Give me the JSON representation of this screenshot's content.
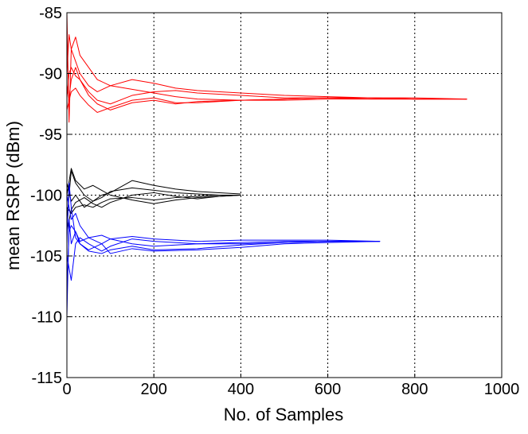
{
  "chart_data": {
    "type": "line",
    "title": "",
    "xlabel": "No. of Samples",
    "ylabel": "mean RSRP (dBm)",
    "xlim": [
      0,
      1000
    ],
    "ylim": [
      -115,
      -85
    ],
    "xticks": [
      0,
      200,
      400,
      600,
      800,
      1000
    ],
    "yticks": [
      -85,
      -90,
      -95,
      -100,
      -105,
      -110,
      -115
    ],
    "xtick_labels": [
      "0",
      "200",
      "400",
      "600",
      "800",
      "1000"
    ],
    "ytick_labels": [
      "-85",
      "-90",
      "-95",
      "-100",
      "-105",
      "-110",
      "-115"
    ],
    "grid": true,
    "grid_style": "dotted",
    "legend": null,
    "series": [
      {
        "color": "#ff0000",
        "x": [
          0,
          5,
          10,
          20,
          30,
          50,
          70,
          100,
          150,
          200,
          250,
          300,
          400,
          500,
          600,
          700,
          800,
          920
        ],
        "y": [
          -85,
          -94,
          -88,
          -87,
          -88.5,
          -89.5,
          -90.5,
          -91,
          -90.5,
          -90.8,
          -91.2,
          -91.4,
          -91.6,
          -91.8,
          -91.9,
          -92,
          -92,
          -92.1
        ]
      },
      {
        "color": "#ff0000",
        "x": [
          0,
          5,
          10,
          20,
          30,
          50,
          70,
          100,
          150,
          200,
          250,
          300,
          400,
          500,
          600,
          700,
          800,
          920
        ],
        "y": [
          -90,
          -86.8,
          -88,
          -89,
          -90,
          -91,
          -91.5,
          -91,
          -91.3,
          -91.6,
          -91.9,
          -92.1,
          -92.2,
          -92.1,
          -92,
          -92,
          -92.1,
          -92.1
        ]
      },
      {
        "color": "#ff0000",
        "x": [
          0,
          5,
          10,
          20,
          30,
          50,
          70,
          100,
          150,
          200,
          250,
          300,
          400,
          500,
          600,
          700,
          800,
          920
        ],
        "y": [
          -91,
          -92,
          -90.5,
          -89.5,
          -90.5,
          -91.8,
          -92.5,
          -93,
          -92.4,
          -92.2,
          -92.5,
          -92.3,
          -92.2,
          -92.2,
          -92.1,
          -92.1,
          -92.1,
          -92.1
        ]
      },
      {
        "color": "#ff0000",
        "x": [
          0,
          5,
          10,
          20,
          30,
          50,
          70,
          100,
          150,
          200,
          250,
          300,
          400,
          500,
          600,
          700,
          800,
          920
        ],
        "y": [
          -93,
          -92.2,
          -91.5,
          -91.2,
          -91.8,
          -92.6,
          -93.2,
          -92.8,
          -92.2,
          -92,
          -92.4,
          -92.4,
          -92.2,
          -92.1,
          -92,
          -92,
          -92.1,
          -92.1
        ]
      },
      {
        "color": "#ff0000",
        "x": [
          0,
          5,
          10,
          20,
          30,
          50,
          70,
          100,
          150,
          200,
          250,
          300,
          400,
          500,
          600,
          700,
          800,
          920
        ],
        "y": [
          -92,
          -90,
          -89.5,
          -90.2,
          -90.5,
          -91.5,
          -92.2,
          -92.5,
          -91.8,
          -91.5,
          -91.4,
          -91.6,
          -91.8,
          -92,
          -92,
          -92.1,
          -92.1,
          -92.1
        ]
      },
      {
        "color": "#000000",
        "x": [
          0,
          10,
          20,
          40,
          60,
          80,
          100,
          150,
          200,
          250,
          300,
          350,
          400
        ],
        "y": [
          -102,
          -98,
          -99,
          -100,
          -100.5,
          -100.2,
          -99.7,
          -99.4,
          -99.6,
          -99.8,
          -99.9,
          -100,
          -100
        ]
      },
      {
        "color": "#000000",
        "x": [
          0,
          10,
          20,
          40,
          60,
          80,
          100,
          150,
          200,
          250,
          300,
          350,
          400
        ],
        "y": [
          -99,
          -100.5,
          -100,
          -101,
          -100.5,
          -100,
          -99.8,
          -98.8,
          -99.2,
          -99.5,
          -99.7,
          -99.8,
          -99.9
        ]
      },
      {
        "color": "#000000",
        "x": [
          0,
          10,
          20,
          40,
          60,
          80,
          100,
          150,
          200,
          250,
          300,
          350,
          400
        ],
        "y": [
          -101,
          -101.5,
          -101,
          -100.8,
          -101,
          -100.6,
          -100.3,
          -100.2,
          -100.4,
          -100.2,
          -100.1,
          -100,
          -100
        ]
      },
      {
        "color": "#000000",
        "x": [
          0,
          10,
          20,
          40,
          60,
          80,
          100,
          150,
          200,
          250,
          300,
          350,
          400
        ],
        "y": [
          -100,
          -97.8,
          -98.8,
          -99.5,
          -99.2,
          -99.6,
          -100,
          -100.4,
          -100.7,
          -100.4,
          -100.2,
          -100.1,
          -100
        ]
      },
      {
        "color": "#000000",
        "x": [
          0,
          10,
          20,
          40,
          60,
          80,
          100,
          150,
          200,
          250,
          300,
          350,
          400
        ],
        "y": [
          -103,
          -101.2,
          -100.6,
          -100.2,
          -100.7,
          -101,
          -100.6,
          -100,
          -99.8,
          -100.1,
          -100.3,
          -100.1,
          -100
        ]
      },
      {
        "color": "#0000ff",
        "x": [
          0,
          5,
          10,
          20,
          30,
          50,
          80,
          100,
          150,
          200,
          300,
          400,
          500,
          600,
          720
        ],
        "y": [
          -110,
          -102,
          -104,
          -103,
          -104,
          -104.5,
          -104,
          -103.6,
          -104,
          -104.2,
          -104,
          -103.9,
          -103.8,
          -103.8,
          -103.8
        ]
      },
      {
        "color": "#0000ff",
        "x": [
          0,
          5,
          10,
          20,
          30,
          50,
          80,
          100,
          150,
          200,
          300,
          400,
          500,
          600,
          720
        ],
        "y": [
          -104,
          -99,
          -101,
          -103.5,
          -104,
          -104.6,
          -104.8,
          -104.5,
          -104.2,
          -104.5,
          -104.4,
          -104.1,
          -103.9,
          -103.8,
          -103.8
        ]
      },
      {
        "color": "#0000ff",
        "x": [
          0,
          5,
          10,
          20,
          30,
          50,
          80,
          100,
          150,
          200,
          300,
          400,
          500,
          600,
          720
        ],
        "y": [
          -105,
          -106,
          -107,
          -104,
          -103.5,
          -104,
          -104.6,
          -104.2,
          -103.6,
          -103.8,
          -104,
          -104,
          -103.9,
          -103.8,
          -103.8
        ]
      },
      {
        "color": "#0000ff",
        "x": [
          0,
          5,
          10,
          20,
          30,
          50,
          80,
          100,
          150,
          200,
          300,
          400,
          500,
          600,
          720
        ],
        "y": [
          -100,
          -101,
          -102,
          -101.5,
          -102.5,
          -103.5,
          -104,
          -104.8,
          -104.4,
          -104.6,
          -104.5,
          -104.3,
          -104,
          -103.9,
          -103.8
        ]
      },
      {
        "color": "#0000ff",
        "x": [
          0,
          5,
          10,
          20,
          30,
          50,
          80,
          100,
          150,
          200,
          300,
          400,
          500,
          600,
          720
        ],
        "y": [
          -108,
          -103,
          -102.5,
          -103,
          -103.8,
          -103.5,
          -103.3,
          -103.6,
          -103.4,
          -103.6,
          -103.8,
          -103.7,
          -103.7,
          -103.7,
          -103.8
        ]
      }
    ]
  }
}
